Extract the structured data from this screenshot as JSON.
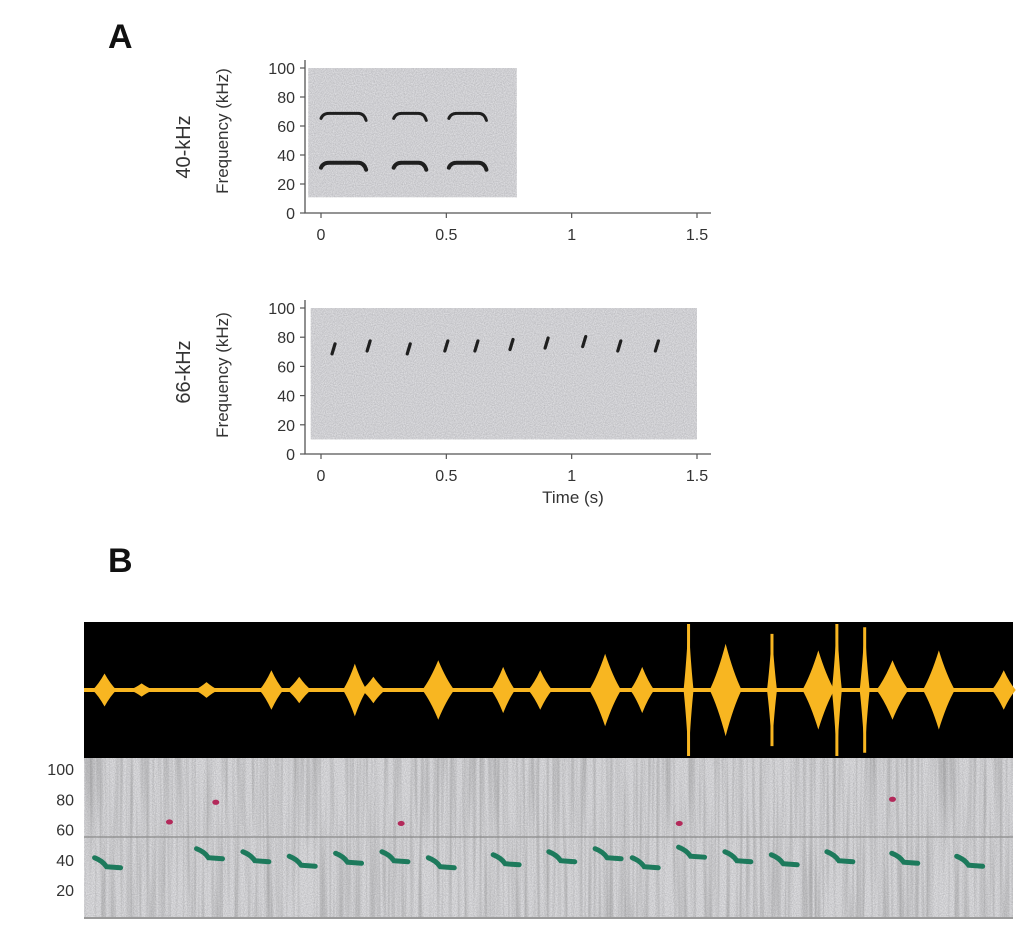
{
  "panels": {
    "a_letter": "A",
    "b_letter": "B"
  },
  "colors": {
    "spectrogram_bg": "#e6e6e9",
    "call_dark": "#1f1f1f",
    "waveform": "#f8b621",
    "waveform_bg": "#000000",
    "call_low": "#1d7a5c",
    "call_high": "#b3295a"
  },
  "chart_data": [
    {
      "type": "scatter",
      "panel": "A",
      "row_label": "40-kHz",
      "ylabel": "Frequency (kHz)",
      "xlabel": "",
      "xlim": [
        0,
        1.5
      ],
      "ylim": [
        0,
        100
      ],
      "xticks": [
        "0",
        "0.5",
        "1",
        "1.5"
      ],
      "yticks": [
        "0",
        "20",
        "40",
        "60",
        "80",
        "100"
      ],
      "spectrogram_extent": {
        "t": [
          -0.05,
          0.78
        ],
        "f": [
          11,
          100
        ]
      },
      "calls": [
        {
          "t_start": 0.0,
          "t_end": 0.18,
          "f_low": 34,
          "f_high": 68
        },
        {
          "t_start": 0.29,
          "t_end": 0.42,
          "f_low": 34,
          "f_high": 68
        },
        {
          "t_start": 0.51,
          "t_end": 0.66,
          "f_low": 34,
          "f_high": 68
        }
      ]
    },
    {
      "type": "scatter",
      "panel": "A",
      "row_label": "66-kHz",
      "ylabel": "Frequency (kHz)",
      "xlabel": "Time (s)",
      "xlim": [
        0,
        1.5
      ],
      "ylim": [
        0,
        100
      ],
      "xticks": [
        "0",
        "0.5",
        "1",
        "1.5"
      ],
      "yticks": [
        "0",
        "20",
        "40",
        "60",
        "80",
        "100"
      ],
      "spectrogram_extent": {
        "t": [
          -0.04,
          1.5
        ],
        "f": [
          10,
          100
        ]
      },
      "calls": [
        {
          "t": 0.05,
          "f": 72
        },
        {
          "t": 0.19,
          "f": 74
        },
        {
          "t": 0.35,
          "f": 72
        },
        {
          "t": 0.5,
          "f": 74
        },
        {
          "t": 0.62,
          "f": 74
        },
        {
          "t": 0.76,
          "f": 75
        },
        {
          "t": 0.9,
          "f": 76
        },
        {
          "t": 1.05,
          "f": 77
        },
        {
          "t": 1.19,
          "f": 74
        },
        {
          "t": 1.34,
          "f": 74
        }
      ]
    },
    {
      "type": "scatter",
      "panel": "B",
      "yticks": [
        "20",
        "40",
        "60",
        "80",
        "100"
      ],
      "ylim": [
        10,
        100
      ],
      "low_band_calls": [
        {
          "t": 0.02,
          "f": 38
        },
        {
          "t": 0.13,
          "f": 44
        },
        {
          "t": 0.18,
          "f": 42
        },
        {
          "t": 0.23,
          "f": 39
        },
        {
          "t": 0.28,
          "f": 41
        },
        {
          "t": 0.33,
          "f": 42
        },
        {
          "t": 0.38,
          "f": 38
        },
        {
          "t": 0.45,
          "f": 40
        },
        {
          "t": 0.51,
          "f": 42
        },
        {
          "t": 0.56,
          "f": 44
        },
        {
          "t": 0.6,
          "f": 38
        },
        {
          "t": 0.65,
          "f": 45
        },
        {
          "t": 0.7,
          "f": 42
        },
        {
          "t": 0.75,
          "f": 40
        },
        {
          "t": 0.81,
          "f": 42
        },
        {
          "t": 0.88,
          "f": 41
        },
        {
          "t": 0.95,
          "f": 39
        }
      ],
      "high_band_calls": [
        {
          "t": 0.09,
          "f": 65
        },
        {
          "t": 0.14,
          "f": 78
        },
        {
          "t": 0.34,
          "f": 64
        },
        {
          "t": 0.64,
          "f": 64
        },
        {
          "t": 0.87,
          "f": 80
        }
      ],
      "waveform_bursts": [
        {
          "t": 0.02,
          "amp": 0.25
        },
        {
          "t": 0.06,
          "amp": 0.1
        },
        {
          "t": 0.13,
          "amp": 0.12
        },
        {
          "t": 0.2,
          "amp": 0.3
        },
        {
          "t": 0.23,
          "amp": 0.2
        },
        {
          "t": 0.29,
          "amp": 0.4
        },
        {
          "t": 0.31,
          "amp": 0.2
        },
        {
          "t": 0.38,
          "amp": 0.45
        },
        {
          "t": 0.45,
          "amp": 0.35
        },
        {
          "t": 0.49,
          "amp": 0.3
        },
        {
          "t": 0.56,
          "amp": 0.55
        },
        {
          "t": 0.6,
          "amp": 0.35
        },
        {
          "t": 0.65,
          "amp": 1.0
        },
        {
          "t": 0.69,
          "amp": 0.7
        },
        {
          "t": 0.74,
          "amp": 0.85
        },
        {
          "t": 0.79,
          "amp": 0.6
        },
        {
          "t": 0.81,
          "amp": 1.0
        },
        {
          "t": 0.84,
          "amp": 0.95
        },
        {
          "t": 0.87,
          "amp": 0.45
        },
        {
          "t": 0.92,
          "amp": 0.6
        },
        {
          "t": 0.99,
          "amp": 0.3
        }
      ]
    }
  ]
}
